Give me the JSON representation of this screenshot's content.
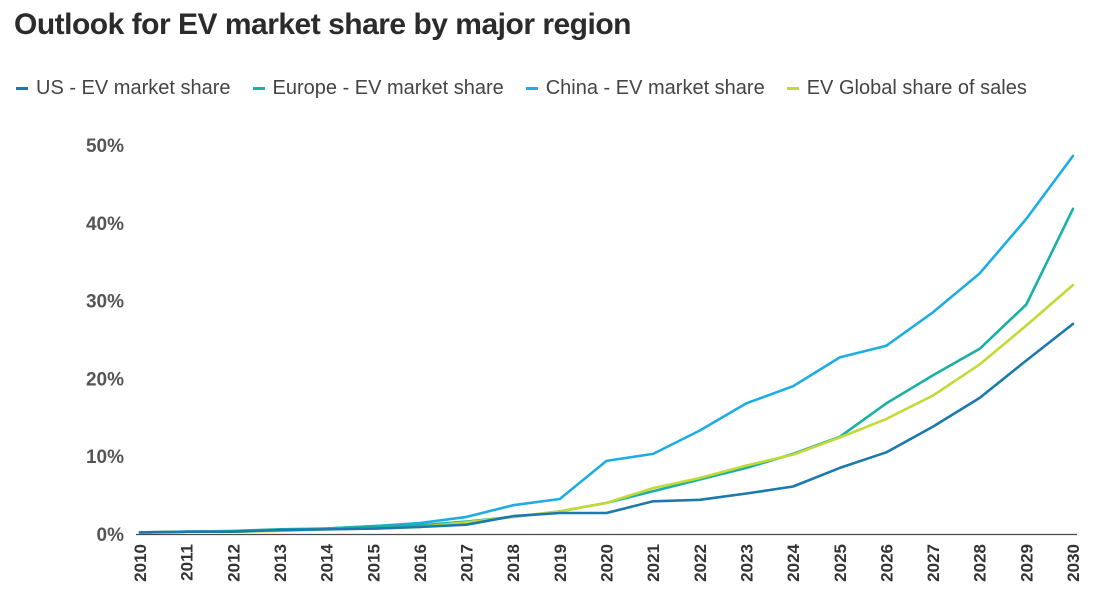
{
  "chart_data": {
    "type": "line",
    "title": "Outlook for EV market share by major region",
    "categories": [
      "2010",
      "2011",
      "2012",
      "2013",
      "2014",
      "2015",
      "2016",
      "2017",
      "2018",
      "2019",
      "2020",
      "2021",
      "2022",
      "2023",
      "2024",
      "2025",
      "2026",
      "2027",
      "2028",
      "2029",
      "2030"
    ],
    "series": [
      {
        "name": "US - EV market share",
        "color": "#1b79ae",
        "values": [
          0.2,
          0.3,
          0.3,
          0.5,
          0.6,
          0.7,
          0.9,
          1.2,
          2.3,
          2.7,
          2.7,
          4.2,
          4.4,
          5.2,
          6.1,
          8.5,
          10.5,
          13.8,
          17.5,
          22.3,
          27.0
        ]
      },
      {
        "name": "Europe - EV market share",
        "color": "#1ab0a6",
        "values": [
          0.2,
          0.3,
          0.4,
          0.6,
          0.7,
          1.0,
          1.1,
          1.6,
          2.2,
          2.9,
          4.0,
          5.5,
          7.0,
          8.5,
          10.3,
          12.5,
          16.8,
          20.4,
          23.8,
          29.5,
          41.8
        ]
      },
      {
        "name": "China - EV market share",
        "color": "#1dade3",
        "values": [
          0.2,
          0.3,
          0.3,
          0.5,
          0.7,
          1.0,
          1.4,
          2.2,
          3.7,
          4.5,
          9.4,
          10.3,
          13.3,
          16.8,
          19.0,
          22.7,
          24.2,
          28.5,
          33.5,
          40.5,
          48.6
        ]
      },
      {
        "name": "EV Global share of sales",
        "color": "#c3d936",
        "values": [
          0.2,
          0.3,
          0.3,
          0.4,
          0.6,
          0.7,
          0.9,
          1.5,
          2.2,
          2.9,
          4.0,
          5.9,
          7.2,
          8.8,
          10.2,
          12.4,
          14.8,
          17.8,
          21.8,
          26.8,
          32.0
        ]
      }
    ],
    "yticks": [
      "0%",
      "10%",
      "20%",
      "30%",
      "40%",
      "50%"
    ],
    "ylim": [
      0,
      50
    ],
    "grid": false,
    "legend": "top-left"
  }
}
